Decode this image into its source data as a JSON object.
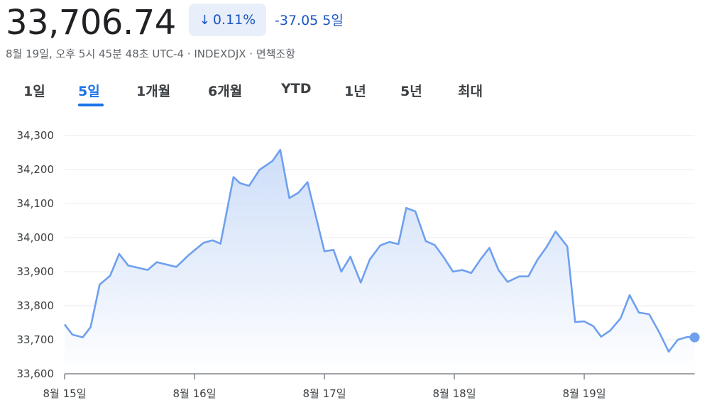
{
  "header": {
    "price": "33,706.74",
    "change_pct": "0.11%",
    "change_abs": "-37.05",
    "period_label": "5일",
    "meta": "8월 19일, 오후 5시 45분 48초 UTC-4 · INDEXDJX · 면책조항"
  },
  "tabs": [
    {
      "label": "1일",
      "active": false
    },
    {
      "label": "5일",
      "active": true
    },
    {
      "label": "1개월",
      "active": false
    },
    {
      "label": "6개월",
      "active": false
    },
    {
      "label": "YTD",
      "active": false
    },
    {
      "label": "1년",
      "active": false
    },
    {
      "label": "5년",
      "active": false
    },
    {
      "label": "최대",
      "active": false
    }
  ],
  "colors": {
    "line": "#6ea0ee",
    "fill_top": "#c5d8f7",
    "accent": "#1a73e8",
    "grid": "#e8eaed"
  },
  "icons": {
    "change_arrow": "arrow-down-icon"
  },
  "chart_data": {
    "type": "area",
    "title": "",
    "xlabel": "",
    "ylabel": "",
    "ylim": [
      33600,
      34300
    ],
    "yticks": [
      34300,
      34200,
      34100,
      34000,
      33900,
      33800,
      33700,
      33600
    ],
    "ytick_labels": [
      "34,300",
      "34,200",
      "34,100",
      "34,000",
      "33,900",
      "33,800",
      "33,700",
      "33,600"
    ],
    "xticks": [
      0,
      1,
      2,
      3,
      4
    ],
    "xtick_labels": [
      "8월 15일",
      "8월 16일",
      "8월 17일",
      "8월 18일",
      "8월 19일"
    ],
    "xlim": [
      0,
      4.85
    ],
    "grid": true,
    "series": [
      {
        "x": [
          0,
          0.06,
          0.14,
          0.2,
          0.27,
          0.35,
          0.42,
          0.49,
          0.64,
          0.71,
          0.86,
          0.95,
          1.07,
          1.14,
          1.2,
          1.3,
          1.35,
          1.42,
          1.5,
          1.6,
          1.66,
          1.73,
          1.8,
          1.87,
          2.0,
          2.07,
          2.13,
          2.2,
          2.28,
          2.35,
          2.43,
          2.5,
          2.57,
          2.63,
          2.7,
          2.78,
          2.85,
          2.92,
          2.99,
          3.06,
          3.13,
          3.2,
          3.27,
          3.34,
          3.41,
          3.5,
          3.57,
          3.64,
          3.71,
          3.78,
          3.87,
          3.93,
          4.0,
          4.07,
          4.13,
          4.2,
          4.28,
          4.35,
          4.42,
          4.5,
          4.58,
          4.65,
          4.72,
          4.79,
          4.85
        ],
        "y": [
          33745,
          33715,
          33707,
          33737,
          33862,
          33888,
          33952,
          33918,
          33905,
          33928,
          33914,
          33947,
          33985,
          33992,
          33982,
          34178,
          34160,
          34152,
          34199,
          34225,
          34258,
          34116,
          34132,
          34163,
          33960,
          33964,
          33900,
          33944,
          33868,
          33936,
          33977,
          33987,
          33981,
          34087,
          34077,
          33990,
          33978,
          33941,
          33900,
          33905,
          33896,
          33935,
          33970,
          33905,
          33870,
          33886,
          33886,
          33935,
          33972,
          34018,
          33974,
          33752,
          33754,
          33740,
          33709,
          33727,
          33763,
          33831,
          33780,
          33775,
          33720,
          33665,
          33700,
          33708,
          33707
        ]
      }
    ]
  }
}
